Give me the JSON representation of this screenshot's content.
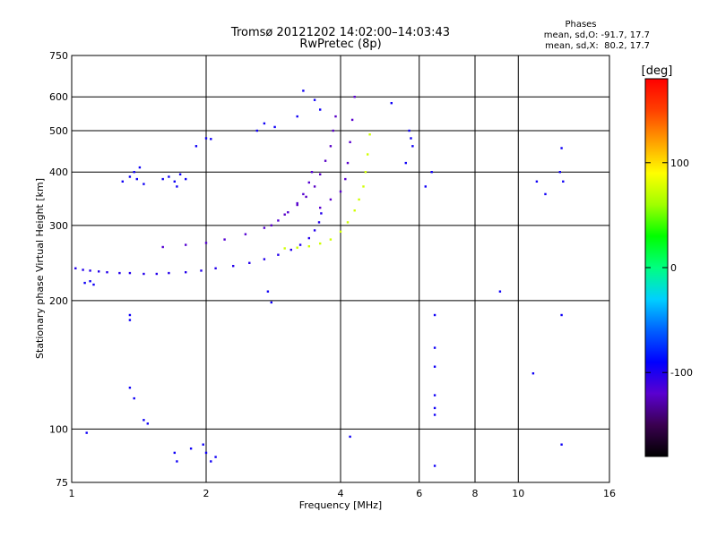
{
  "chart_data": {
    "type": "scatter",
    "title": "Tromsø 20121202 14:02:00–14:03:43",
    "subtitle": "RwPretec (8p)",
    "info": {
      "heading": "Phases",
      "line_o": "mean, sd,O: -91.7, 17.7",
      "line_x": "mean, sd,X:  80.2, 17.7"
    },
    "xlabel": "Frequency [MHz]",
    "ylabel": "Stationary phase Virtual Height [km]",
    "x_scale": "log",
    "y_scale": "log",
    "xlim": [
      1,
      16
    ],
    "ylim": [
      75,
      750
    ],
    "x_ticks": [
      1,
      2,
      4,
      6,
      8,
      10,
      16
    ],
    "x_grid": [
      2,
      4,
      6,
      8,
      10
    ],
    "y_ticks": [
      75,
      100,
      200,
      300,
      400,
      500,
      600,
      750
    ],
    "y_grid": [
      100,
      200,
      300,
      400,
      500,
      600
    ],
    "grid": true,
    "colorbar": {
      "label": "[deg]",
      "range": [
        -180,
        180
      ],
      "ticks": [
        100,
        0,
        -100
      ],
      "colors": [
        "#000000",
        "#3a0050",
        "#5a00d0",
        "#0000ff",
        "#0060ff",
        "#00d0ff",
        "#00ff80",
        "#00ff00",
        "#a0ff00",
        "#ffff00",
        "#ffa000",
        "#ff4000",
        "#ff0000"
      ]
    },
    "series": [
      {
        "trace": "o_lower",
        "points": [
          [
            1.02,
            238
          ],
          [
            1.06,
            236
          ],
          [
            1.1,
            235
          ],
          [
            1.15,
            234
          ],
          [
            1.2,
            233
          ],
          [
            1.28,
            232
          ],
          [
            1.35,
            232
          ],
          [
            1.45,
            231
          ],
          [
            1.55,
            231
          ],
          [
            1.65,
            232
          ],
          [
            1.8,
            233
          ],
          [
            1.95,
            235
          ],
          [
            2.1,
            238
          ],
          [
            2.3,
            241
          ],
          [
            2.5,
            245
          ],
          [
            2.7,
            250
          ],
          [
            2.9,
            256
          ],
          [
            3.1,
            263
          ],
          [
            3.25,
            270
          ],
          [
            3.4,
            280
          ],
          [
            3.5,
            292
          ],
          [
            3.58,
            305
          ],
          [
            3.62,
            320
          ]
        ],
        "phase": -102
      },
      {
        "trace": "o_second",
        "points": [
          [
            1.6,
            267
          ],
          [
            1.8,
            270
          ],
          [
            2.0,
            273
          ],
          [
            2.2,
            278
          ],
          [
            2.45,
            286
          ],
          [
            2.7,
            296
          ],
          [
            2.9,
            308
          ],
          [
            3.05,
            322
          ],
          [
            3.2,
            338
          ],
          [
            3.3,
            355
          ],
          [
            3.4,
            378
          ],
          [
            3.45,
            400
          ]
        ],
        "phase": -118
      },
      {
        "trace": "o_third",
        "points": [
          [
            2.8,
            300
          ],
          [
            3.0,
            318
          ],
          [
            3.2,
            335
          ],
          [
            3.35,
            350
          ],
          [
            3.5,
            370
          ],
          [
            3.6,
            395
          ],
          [
            3.7,
            425
          ],
          [
            3.8,
            460
          ],
          [
            3.85,
            500
          ],
          [
            3.9,
            540
          ]
        ],
        "phase": -122
      },
      {
        "trace": "o_fourth",
        "points": [
          [
            3.6,
            330
          ],
          [
            3.8,
            345
          ],
          [
            4.0,
            360
          ],
          [
            4.1,
            385
          ],
          [
            4.15,
            420
          ],
          [
            4.2,
            470
          ],
          [
            4.25,
            530
          ],
          [
            4.3,
            600
          ]
        ],
        "phase": -120
      },
      {
        "trace": "x_trace",
        "points": [
          [
            3.0,
            265
          ],
          [
            3.2,
            266
          ],
          [
            3.4,
            268
          ],
          [
            3.6,
            272
          ],
          [
            3.8,
            278
          ],
          [
            4.0,
            290
          ],
          [
            4.15,
            305
          ],
          [
            4.3,
            325
          ],
          [
            4.4,
            345
          ],
          [
            4.5,
            370
          ],
          [
            4.55,
            400
          ],
          [
            4.6,
            440
          ],
          [
            4.65,
            490
          ]
        ],
        "phase": 75
      },
      {
        "trace": "scattered",
        "points": [
          [
            1.07,
            220
          ],
          [
            1.1,
            222
          ],
          [
            1.12,
            218
          ],
          [
            1.3,
            380
          ],
          [
            1.35,
            390
          ],
          [
            1.4,
            385
          ],
          [
            1.45,
            375
          ],
          [
            1.42,
            410
          ],
          [
            1.38,
            400
          ],
          [
            1.6,
            385
          ],
          [
            1.65,
            390
          ],
          [
            1.7,
            380
          ],
          [
            1.75,
            395
          ],
          [
            1.8,
            385
          ],
          [
            1.72,
            370
          ],
          [
            1.9,
            460
          ],
          [
            2.0,
            480
          ],
          [
            2.05,
            478
          ],
          [
            2.6,
            500
          ],
          [
            2.7,
            520
          ],
          [
            2.85,
            510
          ],
          [
            3.2,
            540
          ],
          [
            3.3,
            620
          ],
          [
            3.5,
            590
          ],
          [
            3.6,
            560
          ],
          [
            5.7,
            500
          ],
          [
            5.75,
            480
          ],
          [
            5.8,
            460
          ],
          [
            5.6,
            420
          ],
          [
            5.2,
            580
          ],
          [
            6.2,
            370
          ],
          [
            6.4,
            400
          ],
          [
            6.5,
            185
          ],
          [
            6.5,
            155
          ],
          [
            6.5,
            140
          ],
          [
            6.5,
            120
          ],
          [
            6.5,
            112
          ],
          [
            6.5,
            108
          ],
          [
            6.5,
            82
          ],
          [
            1.35,
            185
          ],
          [
            1.35,
            180
          ],
          [
            1.35,
            125
          ],
          [
            1.38,
            118
          ],
          [
            1.45,
            105
          ],
          [
            1.48,
            103
          ],
          [
            1.7,
            88
          ],
          [
            1.72,
            84
          ],
          [
            1.85,
            90
          ],
          [
            1.97,
            92
          ],
          [
            2.0,
            88
          ],
          [
            2.05,
            84
          ],
          [
            2.1,
            86
          ],
          [
            1.08,
            98
          ],
          [
            4.2,
            96
          ],
          [
            2.75,
            210
          ],
          [
            2.8,
            198
          ],
          [
            11.0,
            380
          ],
          [
            11.5,
            355
          ],
          [
            12.5,
            455
          ],
          [
            12.6,
            380
          ],
          [
            12.4,
            400
          ],
          [
            12.5,
            185
          ],
          [
            12.5,
            92
          ],
          [
            10.8,
            135
          ],
          [
            9.1,
            210
          ]
        ],
        "phase": -95
      }
    ]
  }
}
